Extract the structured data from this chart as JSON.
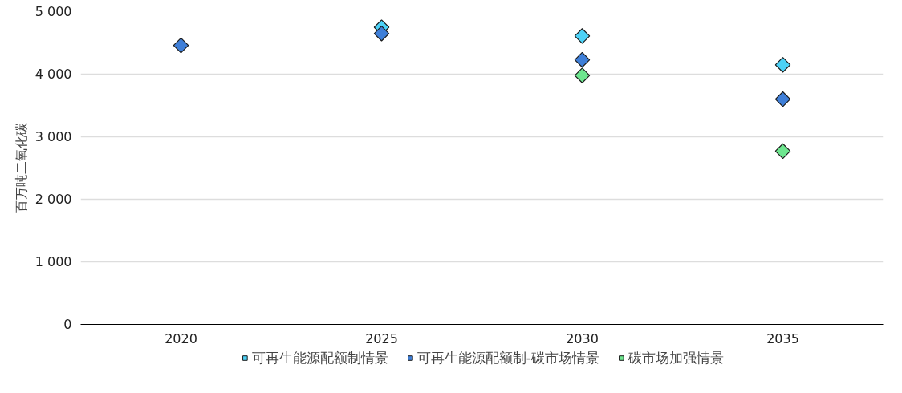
{
  "chart_data": {
    "type": "scatter",
    "ylabel": "百万吨二氧化碳",
    "categories": [
      "2020",
      "2025",
      "2030",
      "2035"
    ],
    "series": [
      {
        "name": "可再生能源配额制情景",
        "color": "#4dd2f7",
        "values": [
          null,
          4750,
          4610,
          4150
        ]
      },
      {
        "name": "可再生能源配额制-碳市场情景",
        "color": "#3f7fd8",
        "values": [
          4460,
          4650,
          4230,
          3600
        ]
      },
      {
        "name": "碳市场加强情景",
        "color": "#6ee68f",
        "values": [
          null,
          null,
          3980,
          2770
        ]
      }
    ],
    "ylim": [
      0,
      5000
    ],
    "yticks": [
      {
        "value": 0,
        "label": "0"
      },
      {
        "value": 1000,
        "label": "1 000"
      },
      {
        "value": 2000,
        "label": "2 000"
      },
      {
        "value": 3000,
        "label": "3 000"
      },
      {
        "value": 4000,
        "label": "4 000"
      },
      {
        "value": 5000,
        "label": "5 000"
      }
    ],
    "grid": "y",
    "legend": "bottom",
    "marker": "diamond"
  }
}
